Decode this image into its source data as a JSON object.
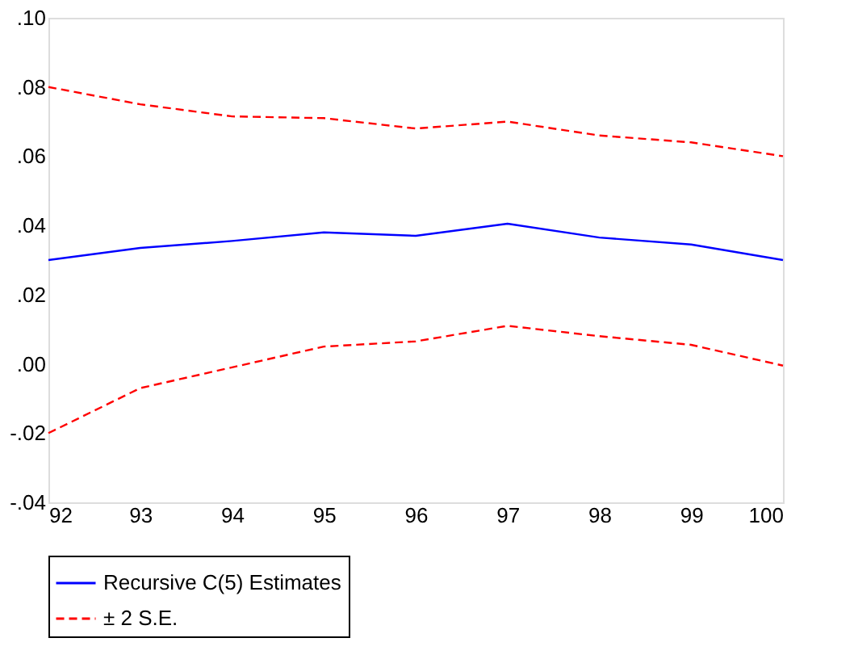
{
  "chart_data": {
    "type": "line",
    "x": [
      92,
      93,
      94,
      95,
      96,
      97,
      98,
      99,
      100
    ],
    "series": [
      {
        "name": "Recursive C(5) Estimates",
        "color": "#0000ff",
        "line_style": "solid",
        "values": [
          0.03,
          0.0335,
          0.0355,
          0.038,
          0.037,
          0.0405,
          0.0365,
          0.0345,
          0.03
        ]
      },
      {
        "name": "± 2 S.E.",
        "color": "#ff0000",
        "line_style": "dashed",
        "values": [
          0.08,
          0.075,
          0.0715,
          0.071,
          0.068,
          0.07,
          0.066,
          0.064,
          0.06
        ]
      },
      {
        "color": "#ff0000",
        "line_style": "dashed",
        "values": [
          -0.02,
          -0.007,
          -0.001,
          0.005,
          0.0065,
          0.011,
          0.008,
          0.0055,
          -0.0005
        ]
      }
    ],
    "xlim": [
      92,
      100
    ],
    "xticks": [
      92,
      93,
      94,
      95,
      96,
      97,
      98,
      99,
      100
    ],
    "ylim": [
      -0.04,
      0.1
    ],
    "yticks": [
      {
        "value": -0.04,
        "label": "-.04"
      },
      {
        "value": -0.02,
        "label": "-.02"
      },
      {
        "value": 0,
        "label": ".00"
      },
      {
        "value": 0.02,
        "label": ".02"
      },
      {
        "value": 0.04,
        "label": ".04"
      },
      {
        "value": 0.06,
        "label": ".06"
      },
      {
        "value": 0.08,
        "label": ".08"
      },
      {
        "value": 0.1,
        "label": ".10"
      }
    ],
    "grid": false,
    "legend": "bottom",
    "marker": "none"
  }
}
